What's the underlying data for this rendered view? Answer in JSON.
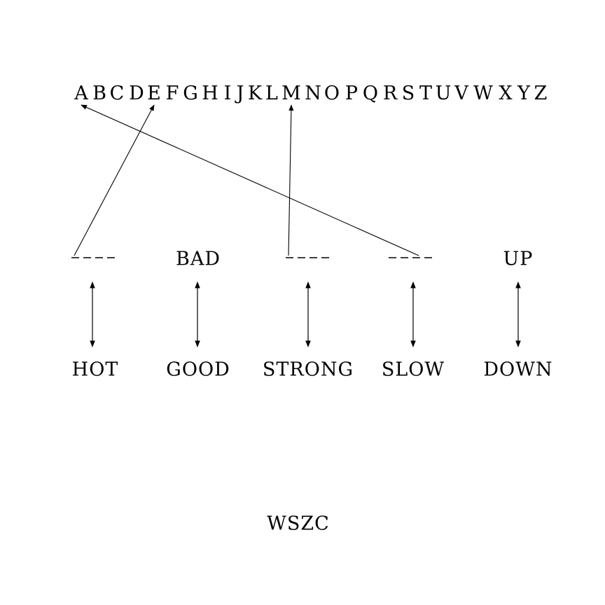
{
  "alphabet": [
    "A",
    "B",
    "C",
    "D",
    "E",
    "F",
    "G",
    "H",
    "I",
    "J",
    "K",
    "L",
    "M",
    "N",
    "O",
    "P",
    "Q",
    "R",
    "S",
    "T",
    "U",
    "V",
    "W",
    "X",
    "Y",
    "Z"
  ],
  "pairs": [
    {
      "top": "",
      "bottom": "HOT"
    },
    {
      "top": "BAD",
      "bottom": "GOOD"
    },
    {
      "top": "",
      "bottom": "STRONG"
    },
    {
      "top": "",
      "bottom": "SLOW"
    },
    {
      "top": "UP",
      "bottom": "DOWN"
    }
  ],
  "letter_links": [
    {
      "from_pair": 0,
      "to_letter": "E"
    },
    {
      "from_pair": 2,
      "to_letter": "M"
    },
    {
      "from_pair": 3,
      "to_letter": "A"
    }
  ],
  "answer": "WSZC"
}
